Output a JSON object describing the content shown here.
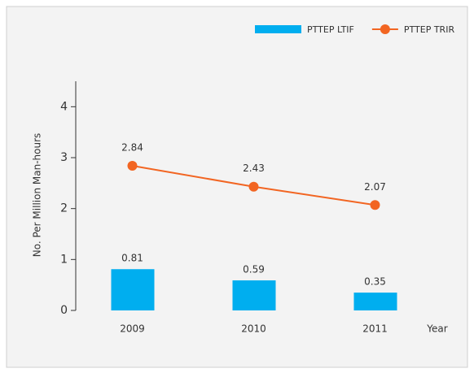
{
  "chart_data": {
    "type": "bar",
    "y_label": "No. Per Million Man-hours",
    "x_label": "Year",
    "categories": [
      "2009",
      "2010",
      "2011"
    ],
    "series": [
      {
        "name": "PTTEP LTIF",
        "type": "bar",
        "color": "#00aeef",
        "values": [
          0.81,
          0.59,
          0.35
        ]
      },
      {
        "name": "PTTEP TRIR",
        "type": "line",
        "color": "#f26522",
        "values": [
          2.84,
          2.43,
          2.07
        ]
      }
    ],
    "ylim": [
      0,
      4.5
    ],
    "yticks": [
      0,
      1,
      2,
      3,
      4
    ],
    "legend": "top-right"
  }
}
